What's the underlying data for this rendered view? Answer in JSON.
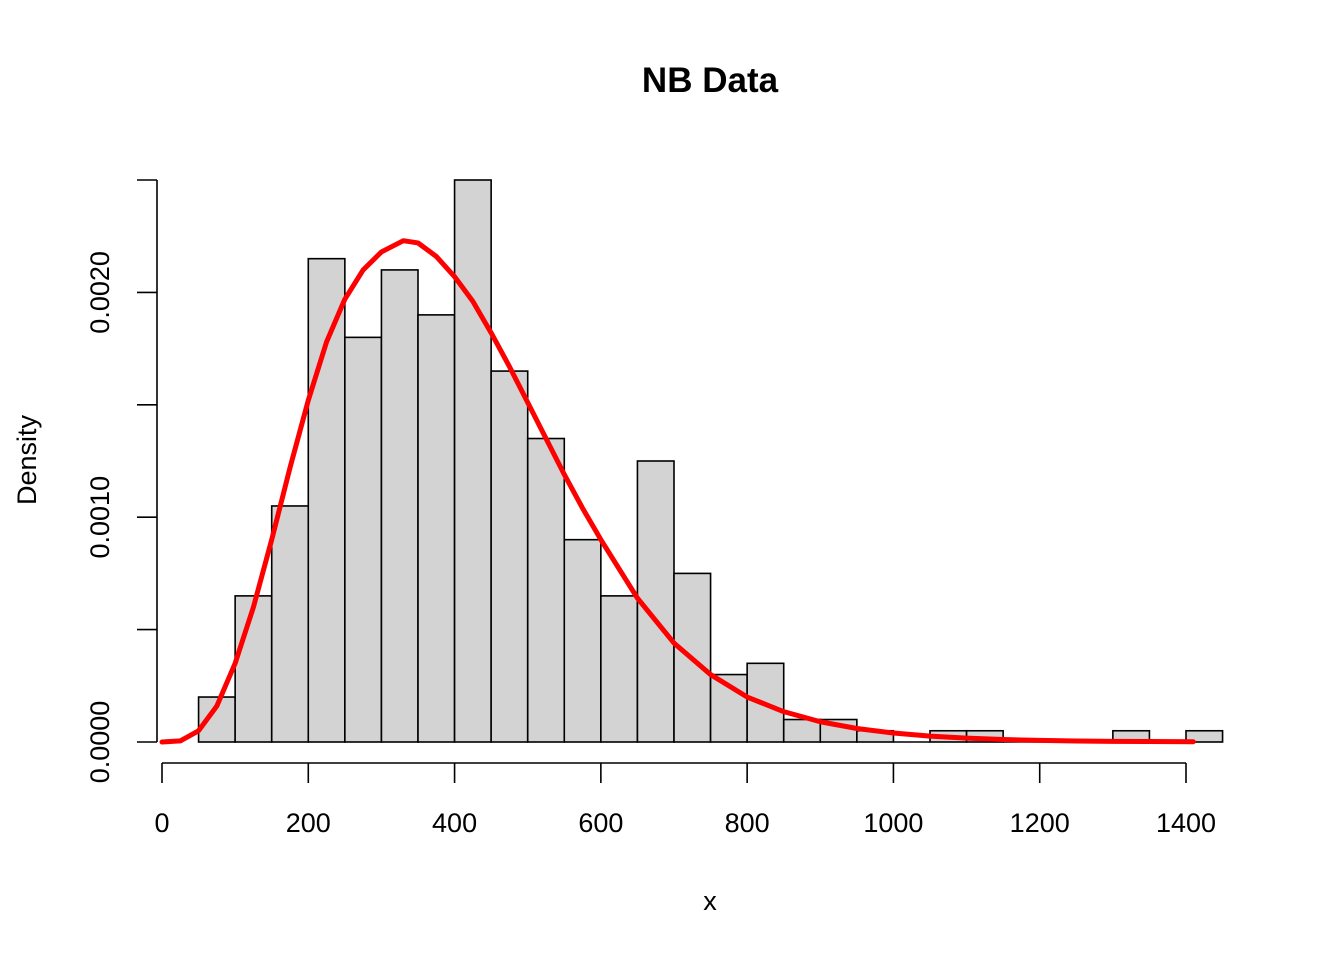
{
  "chart_data": {
    "type": "bar",
    "title": "NB Data",
    "xlabel": "x",
    "ylabel": "Density",
    "xlim": [
      0,
      1450
    ],
    "ylim": [
      0,
      0.0025
    ],
    "x_ticks": [
      0,
      200,
      400,
      600,
      800,
      1000,
      1200,
      1400
    ],
    "x_tick_labels": [
      "0",
      "200",
      "400",
      "600",
      "800",
      "1000",
      "1200",
      "1400"
    ],
    "y_ticks": [
      0,
      0.0005,
      0.001,
      0.0015,
      0.002,
      0.0025
    ],
    "y_tick_labels": [
      {
        "value": 0,
        "label": "0.0000"
      },
      {
        "value": 0.001,
        "label": "0.0010"
      },
      {
        "value": 0.002,
        "label": "0.0020"
      }
    ],
    "histogram": {
      "bin_width": 50,
      "bins": [
        {
          "from": 50,
          "to": 100,
          "density": 0.0002
        },
        {
          "from": 100,
          "to": 150,
          "density": 0.00065
        },
        {
          "from": 150,
          "to": 200,
          "density": 0.00105
        },
        {
          "from": 200,
          "to": 250,
          "density": 0.00215
        },
        {
          "from": 250,
          "to": 300,
          "density": 0.0018
        },
        {
          "from": 300,
          "to": 350,
          "density": 0.0021
        },
        {
          "from": 350,
          "to": 400,
          "density": 0.0019
        },
        {
          "from": 400,
          "to": 450,
          "density": 0.0025
        },
        {
          "from": 450,
          "to": 500,
          "density": 0.00165
        },
        {
          "from": 500,
          "to": 550,
          "density": 0.00135
        },
        {
          "from": 550,
          "to": 600,
          "density": 0.0009
        },
        {
          "from": 600,
          "to": 650,
          "density": 0.00065
        },
        {
          "from": 650,
          "to": 700,
          "density": 0.00125
        },
        {
          "from": 700,
          "to": 750,
          "density": 0.00075
        },
        {
          "from": 750,
          "to": 800,
          "density": 0.0003
        },
        {
          "from": 800,
          "to": 850,
          "density": 0.00035
        },
        {
          "from": 850,
          "to": 900,
          "density": 0.0001
        },
        {
          "from": 900,
          "to": 950,
          "density": 0.0001
        },
        {
          "from": 950,
          "to": 1000,
          "density": 5e-05
        },
        {
          "from": 1000,
          "to": 1050,
          "density": 0
        },
        {
          "from": 1050,
          "to": 1100,
          "density": 5e-05
        },
        {
          "from": 1100,
          "to": 1150,
          "density": 5e-05
        },
        {
          "from": 1150,
          "to": 1200,
          "density": 0
        },
        {
          "from": 1200,
          "to": 1250,
          "density": 0
        },
        {
          "from": 1250,
          "to": 1300,
          "density": 0
        },
        {
          "from": 1300,
          "to": 1350,
          "density": 5e-05
        },
        {
          "from": 1350,
          "to": 1400,
          "density": 0
        },
        {
          "from": 1400,
          "to": 1450,
          "density": 5e-05
        }
      ]
    },
    "density_curve": {
      "color": "#ff0000",
      "x": [
        0,
        25,
        50,
        75,
        100,
        125,
        150,
        175,
        200,
        225,
        250,
        275,
        300,
        330,
        350,
        375,
        400,
        425,
        450,
        475,
        500,
        525,
        550,
        575,
        600,
        650,
        700,
        750,
        800,
        850,
        900,
        950,
        1000,
        1050,
        1100,
        1150,
        1200,
        1250,
        1300,
        1350,
        1410
      ],
      "y": [
        0,
        5e-06,
        5e-05,
        0.00016,
        0.00035,
        0.0006,
        0.0009,
        0.00122,
        0.00152,
        0.00178,
        0.00197,
        0.0021,
        0.00218,
        0.00223,
        0.00222,
        0.00216,
        0.00207,
        0.00196,
        0.00182,
        0.00167,
        0.00151,
        0.00135,
        0.00119,
        0.00104,
        0.0009,
        0.00064,
        0.00044,
        0.0003,
        0.0002,
        0.000135,
        9e-05,
        6e-05,
        4e-05,
        2.6e-05,
        1.7e-05,
        1.1e-05,
        7e-06,
        4.5e-06,
        3e-06,
        2e-06,
        1e-06
      ]
    }
  }
}
